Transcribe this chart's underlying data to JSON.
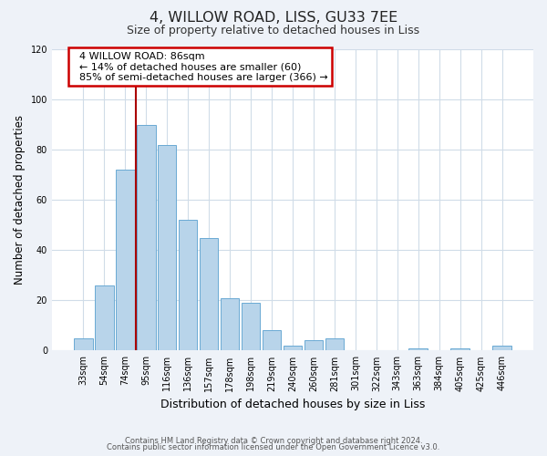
{
  "title": "4, WILLOW ROAD, LISS, GU33 7EE",
  "subtitle": "Size of property relative to detached houses in Liss",
  "xlabel": "Distribution of detached houses by size in Liss",
  "ylabel": "Number of detached properties",
  "bar_labels": [
    "33sqm",
    "54sqm",
    "74sqm",
    "95sqm",
    "116sqm",
    "136sqm",
    "157sqm",
    "178sqm",
    "198sqm",
    "219sqm",
    "240sqm",
    "260sqm",
    "281sqm",
    "301sqm",
    "322sqm",
    "343sqm",
    "363sqm",
    "384sqm",
    "405sqm",
    "425sqm",
    "446sqm"
  ],
  "bar_values": [
    5,
    26,
    72,
    90,
    82,
    52,
    45,
    21,
    19,
    8,
    2,
    4,
    5,
    0,
    0,
    0,
    1,
    0,
    1,
    0,
    2
  ],
  "bar_color": "#b8d4ea",
  "bar_edge_color": "#6aaad4",
  "ylim": [
    0,
    120
  ],
  "yticks": [
    0,
    20,
    40,
    60,
    80,
    100,
    120
  ],
  "property_sqm": 86,
  "annotation_title": "4 WILLOW ROAD: 86sqm",
  "annotation_line1": "← 14% of detached houses are smaller (60)",
  "annotation_line2": "85% of semi-detached houses are larger (366) →",
  "annotation_box_color": "#ffffff",
  "annotation_box_edge": "#cc0000",
  "property_line_color": "#aa0000",
  "footer_line1": "Contains HM Land Registry data © Crown copyright and database right 2024.",
  "footer_line2": "Contains public sector information licensed under the Open Government Licence v3.0.",
  "background_color": "#eef2f8",
  "plot_bg_color": "#ffffff",
  "grid_color": "#d0dce8"
}
